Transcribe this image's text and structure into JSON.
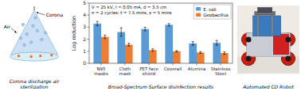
{
  "chart_data": {
    "type": "bar",
    "title": "Broad-Spectrum Surface disinfection results",
    "ylabel": "Log reduction",
    "annotations": [
      "V = 25 kV, I = 0.05 mA, d = 3.5 cm\nn = 2 cycles: t = 7.5 mins, s = 5 mins",
      "Corona discharge air sterilization",
      "Automated CD Robot",
      "Corona",
      "Air"
    ],
    "categories": [
      "N95\nmasks",
      "Cloth\nmask",
      "PET face\nshield",
      "Coverall",
      "Alumina",
      "Stainless\nSteel"
    ],
    "series": [
      {
        "name": "E. coli",
        "color": "#5b9bd5",
        "values": [
          3.3,
          2.6,
          2.85,
          3.2,
          1.65,
          1.7
        ],
        "errors": [
          0.18,
          0.35,
          0.15,
          0.1,
          0.15,
          0.2
        ]
      },
      {
        "name": "Geobacillus",
        "color": "#ed7d31",
        "values": [
          2.2,
          1.55,
          1.1,
          1.0,
          0.9,
          0.85
        ],
        "errors": [
          0.15,
          0.12,
          0.1,
          0.05,
          0.08,
          0.1
        ]
      }
    ],
    "ylim": [
      0,
      5
    ],
    "yticks": [
      0,
      1,
      2,
      3,
      4,
      5
    ],
    "legend": "upper right",
    "grid": false
  }
}
